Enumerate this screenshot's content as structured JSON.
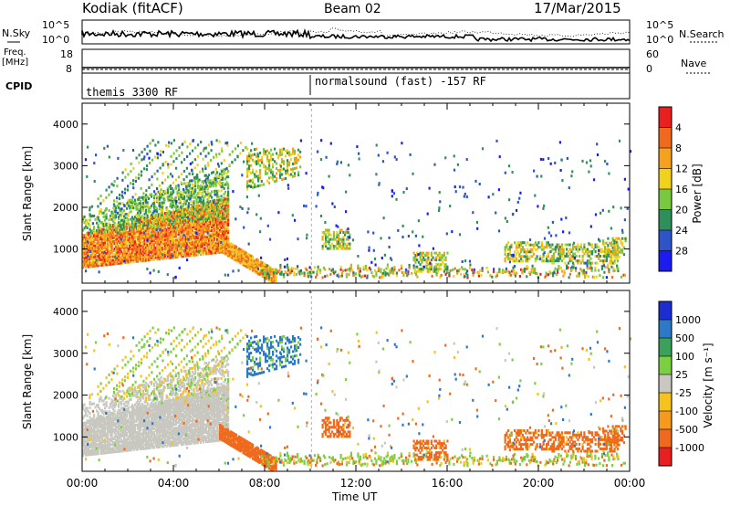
{
  "header": {
    "site": "Kodiak (fitACF)",
    "beam": "Beam 02",
    "date": "17/Mar/2015"
  },
  "top_panels": {
    "nsky_label": "N.Sky",
    "nsky_ticks": [
      "10^5",
      "10^0"
    ],
    "nsearch_label": "N.Search",
    "nsearch_ticks": [
      "10^5",
      "10^0"
    ],
    "freq_label_1": "Freq.",
    "freq_label_2": "[MHz]",
    "freq_ticks": [
      "18",
      "8"
    ],
    "nave_label": "Nave",
    "nave_ticks": [
      "60",
      "0"
    ],
    "cpid_label": "CPID",
    "cpid_segments": [
      "themis 3300 RF",
      "normalsound (fast) -157 RF"
    ]
  },
  "chart_data": [
    {
      "type": "heatmap",
      "name": "power",
      "ylabel": "Slant Range [km]",
      "ylim": [
        180,
        4500
      ],
      "yticks": [
        "1000",
        "2000",
        "3000",
        "4000"
      ],
      "xlabel": "",
      "colorbar_label": "Power [dB]",
      "colorbar_ticks": [
        "4",
        "8",
        "12",
        "16",
        "20",
        "24",
        "28"
      ],
      "colorbar_colors": [
        "#1c1cf0",
        "#2e55c8",
        "#2f8f5a",
        "#7ac840",
        "#f0d21e",
        "#f5a01e",
        "#f06a1e",
        "#e82020"
      ]
    },
    {
      "type": "heatmap",
      "name": "velocity",
      "ylabel": "Slant Range [km]",
      "ylim": [
        180,
        4500
      ],
      "yticks": [
        "1000",
        "2000",
        "3000",
        "4000"
      ],
      "xlabel": "Time UT",
      "xticks": [
        "00:00",
        "04:00",
        "08:00",
        "12:00",
        "16:00",
        "20:00",
        "00:00"
      ],
      "colorbar_label": "Velocity [m s⁻¹]",
      "colorbar_ticks": [
        "1000",
        "500",
        "100",
        "25",
        "-25",
        "-100",
        "-500",
        "-1000"
      ],
      "colorbar_colors": [
        "#1c2ed0",
        "#2e78c8",
        "#3aa05a",
        "#7ad040",
        "#c8c8c0",
        "#f5c21e",
        "#f59a1e",
        "#f06a1e",
        "#e82020"
      ]
    }
  ]
}
